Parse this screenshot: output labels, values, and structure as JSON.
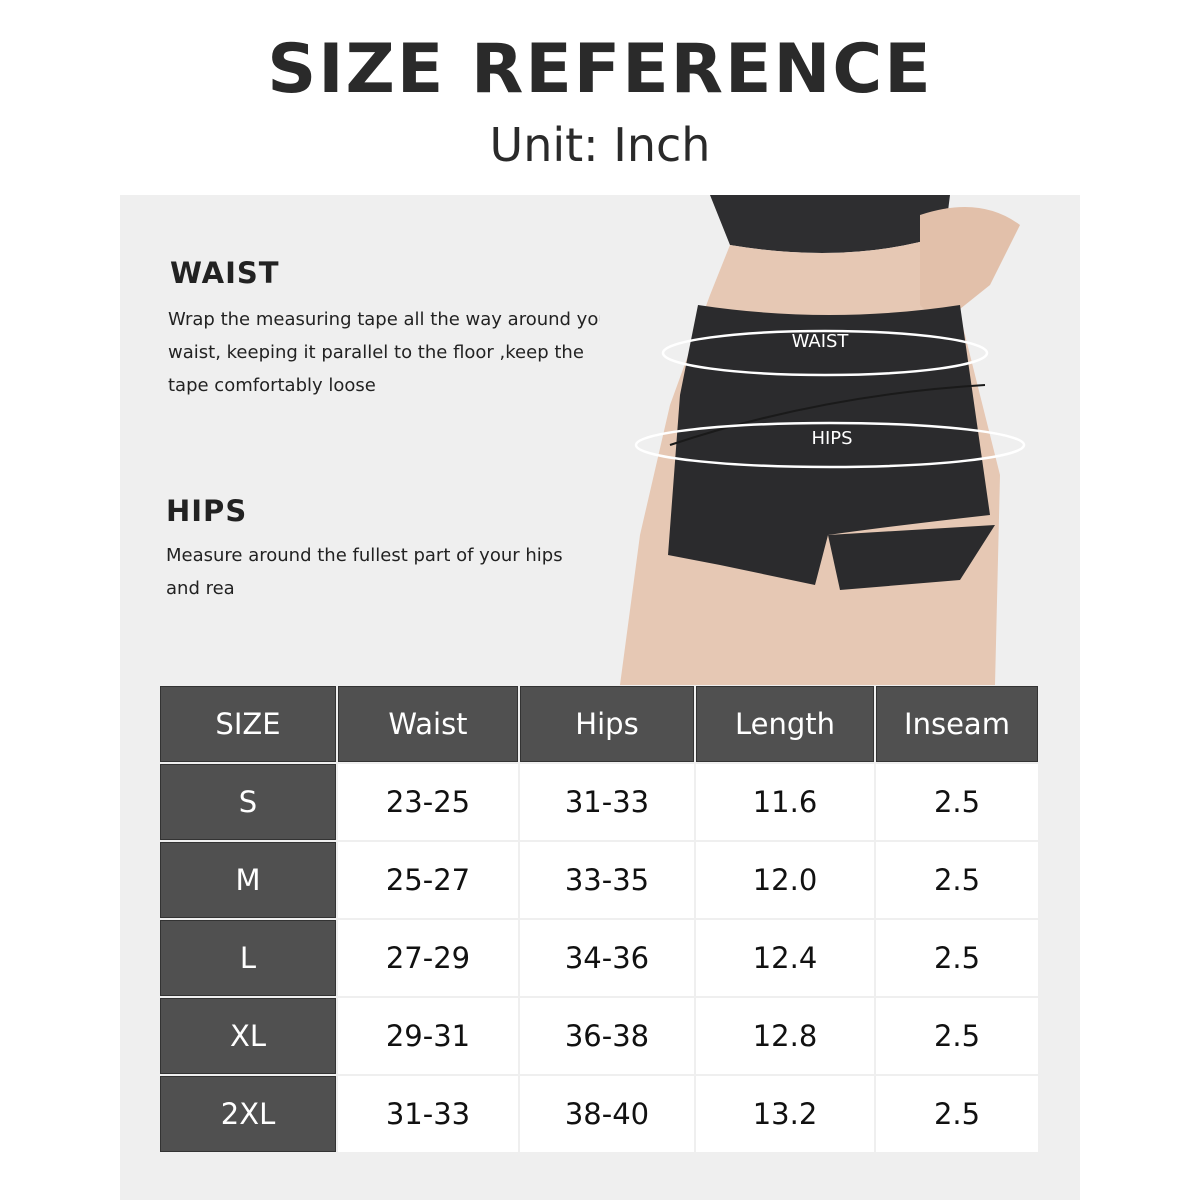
{
  "title": "SIZE REFERENCE",
  "subtitle": "Unit: Inch",
  "sections": [
    {
      "heading": "WAIST",
      "text": "Wrap the measuring tape all the way around your waist, keeping it parallel to the floor ,keep the tape comfortably loose"
    },
    {
      "heading": "HIPS",
      "text": "Measure around the fullest part of your hips and rea"
    }
  ],
  "photo_labels": {
    "waist": "WAIST",
    "hips": "HIPS"
  },
  "colors": {
    "header_bg": "#505050",
    "panel_bg": "#efefef",
    "shorts": "#2b2b2d"
  },
  "table": {
    "headers": [
      "SIZE",
      "Waist",
      "Hips",
      "Length",
      "Inseam"
    ],
    "rows": [
      [
        "S",
        "23-25",
        "31-33",
        "11.6",
        "2.5"
      ],
      [
        "M",
        "25-27",
        "33-35",
        "12.0",
        "2.5"
      ],
      [
        "L",
        "27-29",
        "34-36",
        "12.4",
        "2.5"
      ],
      [
        "XL",
        "29-31",
        "36-38",
        "12.8",
        "2.5"
      ],
      [
        "2XL",
        "31-33",
        "38-40",
        "13.2",
        "2.5"
      ]
    ]
  }
}
